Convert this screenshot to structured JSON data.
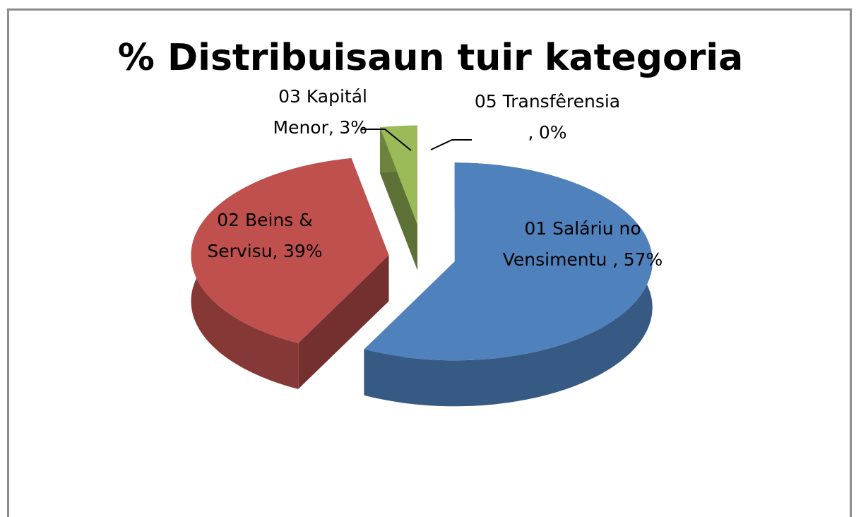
{
  "chart_data": {
    "type": "pie",
    "title": "% Distribuisaun tuir kategoria",
    "categories": [
      "01 Saláriu no Vensimentu ,",
      "02 Beins & Servisu,",
      "03 Kapitál Menor,",
      "05 Transfêrensia ,"
    ],
    "values": [
      57,
      39,
      3,
      0
    ],
    "value_labels": [
      "57%",
      "39%",
      "3%",
      "0%"
    ],
    "colors": [
      "#4f81bd",
      "#c0504d",
      "#9bbb59",
      "#8064a2"
    ]
  }
}
